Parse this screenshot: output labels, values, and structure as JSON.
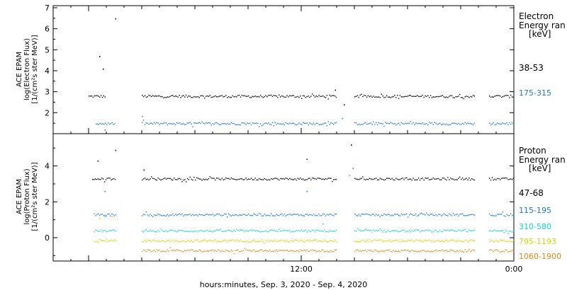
{
  "footer": {
    "xlabel": "hours:minutes, Sep.  3, 2020 - Sep.  4, 2020"
  },
  "colors": {
    "black": "#000000",
    "blue": "#1f78d1",
    "cyan": "#19d3d3",
    "yellow": "#d6d600",
    "orange": "#e08a1a"
  },
  "chart_data": [
    {
      "type": "scatter",
      "panel": "electron",
      "ylabel_lines": [
        "ACE EPAM",
        "log(Electron Flux)",
        "[1/(cm²s ster MeV)]"
      ],
      "legend_title": [
        "Electron",
        "Energy ran",
        "[keV]"
      ],
      "ylim": [
        1.0,
        7.1
      ],
      "yticks": [
        2,
        3,
        4,
        5,
        6,
        7
      ],
      "xlim_hours": [
        -2,
        24
      ],
      "xticks": [
        {
          "hour": 12,
          "label": "12:00"
        },
        {
          "hour": 24,
          "label": "0:00"
        }
      ],
      "series": [
        {
          "name": "38-53",
          "color": "black",
          "base": 2.8,
          "segments": [
            [
              0,
              0.9
            ],
            [
              3.0,
              14.0
            ],
            [
              15.0,
              21.8
            ],
            [
              22.6,
              24.0
            ]
          ],
          "spikes": [
            {
              "x": 0.6,
              "y": 4.7
            },
            {
              "x": 0.8,
              "y": 4.1
            },
            {
              "x": 1.5,
              "y": 6.5
            },
            {
              "x": 13.9,
              "y": 3.1
            },
            {
              "x": 14.4,
              "y": 2.4
            }
          ]
        },
        {
          "name": "175-315",
          "color": "blue",
          "base": 1.5,
          "segments": [
            [
              0.4,
              1.5
            ],
            [
              3.0,
              14.0
            ],
            [
              15.0,
              21.8
            ],
            [
              22.6,
              24.0
            ]
          ],
          "spikes": [
            {
              "x": 0.9,
              "y": 1.2
            },
            {
              "x": 3.0,
              "y": 1.85
            },
            {
              "x": 14.3,
              "y": 1.75
            }
          ]
        }
      ]
    },
    {
      "type": "scatter",
      "panel": "proton",
      "ylabel_lines": [
        "ACE EPAM",
        "log(Proton Flux)",
        "[1/(cm²s ster MeV)]"
      ],
      "legend_title": [
        "Proton",
        "Energy ran",
        "[keV]"
      ],
      "ylim": [
        -1.3,
        5.8
      ],
      "yticks": [
        0,
        2,
        4
      ],
      "xlim_hours": [
        -2,
        24
      ],
      "xticks": [
        {
          "hour": 12,
          "label": "12:00"
        },
        {
          "hour": 24,
          "label": "0:00"
        }
      ],
      "series": [
        {
          "name": "47-68",
          "color": "black",
          "base": 3.3,
          "segments": [
            [
              0.2,
              1.5
            ],
            [
              3.0,
              14.0
            ],
            [
              15.0,
              21.8
            ],
            [
              22.6,
              24.0
            ]
          ],
          "spikes": [
            {
              "x": 0.5,
              "y": 4.3
            },
            {
              "x": 1.5,
              "y": 4.9
            },
            {
              "x": 3.1,
              "y": 3.8
            },
            {
              "x": 12.3,
              "y": 4.4
            },
            {
              "x": 14.8,
              "y": 5.2
            }
          ]
        },
        {
          "name": "115-195",
          "color": "blue",
          "base": 1.3,
          "segments": [
            [
              0.3,
              1.5
            ],
            [
              3.0,
              14.0
            ],
            [
              15.0,
              21.8
            ],
            [
              22.6,
              24.0
            ]
          ],
          "spikes": [
            {
              "x": 0.9,
              "y": 2.6
            },
            {
              "x": 12.3,
              "y": 2.6
            },
            {
              "x": 14.9,
              "y": 3.9
            }
          ]
        },
        {
          "name": "310-580",
          "color": "cyan",
          "base": 0.4,
          "segments": [
            [
              0.3,
              1.5
            ],
            [
              3.0,
              14.0
            ],
            [
              15.0,
              21.8
            ],
            [
              22.6,
              24.0
            ]
          ],
          "spikes": [
            {
              "x": 0.9,
              "y": 1.2
            },
            {
              "x": 13.2,
              "y": 0.8
            }
          ]
        },
        {
          "name": "795-1193",
          "color": "yellow",
          "base": -0.15,
          "segments": [
            [
              0.3,
              1.5
            ],
            [
              3.0,
              14.0
            ],
            [
              15.0,
              21.8
            ],
            [
              22.6,
              24.0
            ]
          ],
          "spikes": [
            {
              "x": 0.6,
              "y": 1.1
            },
            {
              "x": 1.3,
              "y": 1.2
            }
          ]
        },
        {
          "name": "1060-1900",
          "color": "orange",
          "base": -0.7,
          "segments": [
            [
              3.0,
              14.0
            ],
            [
              15.0,
              21.8
            ],
            [
              22.6,
              24.0
            ]
          ],
          "spikes": [
            {
              "x": 14.7,
              "y": 3.5
            }
          ]
        }
      ]
    }
  ]
}
